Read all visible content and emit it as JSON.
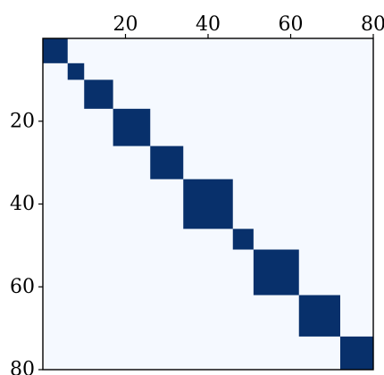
{
  "chart_data": {
    "type": "heatmap",
    "title": "",
    "xlabel": "",
    "ylabel": "",
    "xlim": [
      0,
      80
    ],
    "ylim": [
      0,
      80
    ],
    "x_ticks": [
      "20",
      "40",
      "60",
      "80"
    ],
    "y_ticks": [
      "20",
      "40",
      "60",
      "80"
    ],
    "x_tick_values": [
      20,
      40,
      60,
      80
    ],
    "y_tick_values": [
      20,
      40,
      60,
      80
    ],
    "x_axis_position": "top",
    "y_axis_position": "left",
    "y_inverted": true,
    "grid": false,
    "legend": "none",
    "colors": {
      "background_cell": "#f5f9ff",
      "block_cell": "#08306b",
      "axis": "#000000"
    },
    "blocks": [
      {
        "start": 0,
        "end": 6
      },
      {
        "start": 6,
        "end": 10
      },
      {
        "start": 10,
        "end": 17
      },
      {
        "start": 17,
        "end": 26
      },
      {
        "start": 26,
        "end": 34
      },
      {
        "start": 34,
        "end": 46
      },
      {
        "start": 46,
        "end": 51
      },
      {
        "start": 51,
        "end": 62
      },
      {
        "start": 62,
        "end": 72
      },
      {
        "start": 72,
        "end": 80
      }
    ]
  }
}
